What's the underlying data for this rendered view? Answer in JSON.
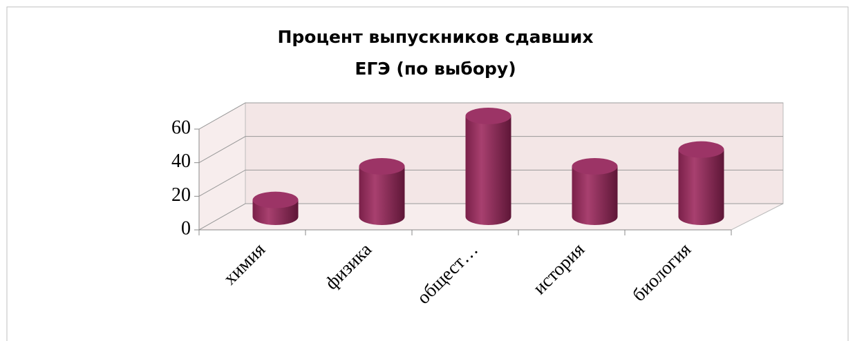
{
  "chart_data": {
    "type": "bar3d",
    "title": [
      "Процент выпускников сдавших",
      "ЕГЭ (по выбору)"
    ],
    "categories": [
      "химия",
      "физика",
      "общест…",
      "история",
      "биология"
    ],
    "values": [
      10,
      30,
      60,
      30,
      40
    ],
    "color": "#8e2a5a",
    "ylim": [
      0,
      60
    ],
    "yticks": [
      0,
      20,
      40,
      60
    ],
    "grid": true
  }
}
